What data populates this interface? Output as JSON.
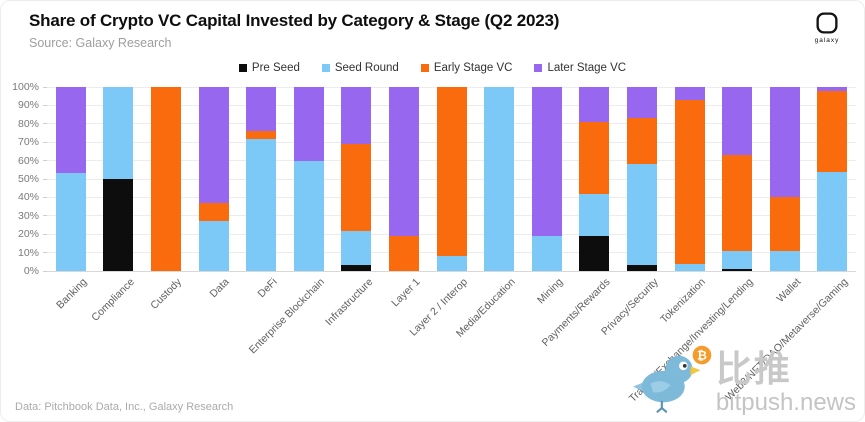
{
  "header": {
    "title": "Share of Crypto VC Capital Invested by Category & Stage (Q2 2023)",
    "source": "Source: Galaxy Research",
    "logo_text": "galaxy"
  },
  "colors": {
    "pre_seed": "#0d0d0d",
    "seed_round": "#7cc9f8",
    "early_stage": "#fa6b0e",
    "later_stage": "#9767ef",
    "grid": "#ececec",
    "axis_text": "#7a7a7a"
  },
  "legend": [
    {
      "label": "Pre Seed",
      "color": "#0d0d0d"
    },
    {
      "label": "Seed Round",
      "color": "#7cc9f8"
    },
    {
      "label": "Early Stage VC",
      "color": "#fa6b0e"
    },
    {
      "label": "Later Stage VC",
      "color": "#9767ef"
    }
  ],
  "chart_data": {
    "type": "bar",
    "stacked": true,
    "title": "Share of Crypto VC Capital Invested by Category & Stage (Q2 2023)",
    "xlabel": "",
    "ylabel": "",
    "ylim": [
      0,
      100
    ],
    "grid": true,
    "legend_position": "top",
    "yticks": [
      "0%",
      "10%",
      "20%",
      "30%",
      "40%",
      "50%",
      "60%",
      "70%",
      "80%",
      "90%",
      "100%"
    ],
    "categories": [
      "Banking",
      "Compliance",
      "Custody",
      "Data",
      "DeFi",
      "Enterprise Blockchain",
      "Infrastructure",
      "Layer 1",
      "Layer 2 / Interop",
      "Media/Education",
      "Mining",
      "Payments/Rewards",
      "Privacy/Security",
      "Tokenization",
      "Trading/Exchange/Investing/Lending",
      "Wallet",
      "Web3/NFT/DAO/Metaverse/Gaming"
    ],
    "series": [
      {
        "name": "Pre Seed",
        "color": "#0d0d0d",
        "values": [
          0,
          50,
          0,
          0,
          0,
          0,
          3,
          0,
          0,
          0,
          0,
          19,
          3,
          0,
          1,
          0,
          0
        ]
      },
      {
        "name": "Seed Round",
        "color": "#7cc9f8",
        "values": [
          53,
          50,
          0,
          27,
          72,
          60,
          19,
          0,
          8,
          100,
          19,
          23,
          55,
          4,
          10,
          11,
          54
        ]
      },
      {
        "name": "Early Stage VC",
        "color": "#fa6b0e",
        "values": [
          0,
          0,
          100,
          10,
          4,
          0,
          47,
          19,
          92,
          0,
          0,
          39,
          25,
          89,
          52,
          29,
          44
        ]
      },
      {
        "name": "Later Stage VC",
        "color": "#9767ef",
        "values": [
          47,
          0,
          0,
          63,
          24,
          40,
          31,
          81,
          0,
          0,
          81,
          19,
          17,
          7,
          37,
          60,
          2
        ]
      }
    ]
  },
  "footer": {
    "credit": "Data: Pitchbook Data, Inc., Galaxy Research"
  },
  "watermark": {
    "cn": "比推",
    "domain": "bitpush.news"
  }
}
